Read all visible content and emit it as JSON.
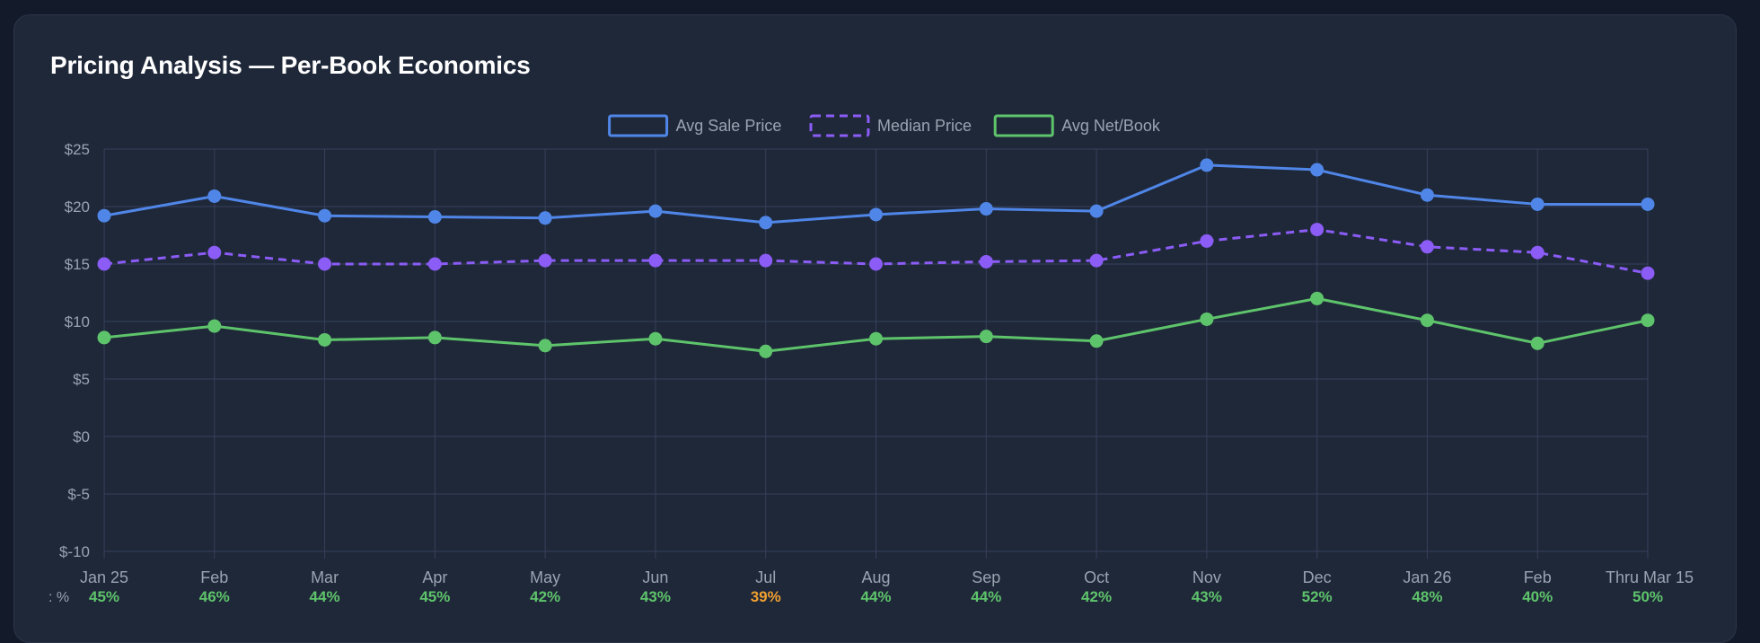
{
  "card": {
    "title": "Pricing Analysis — Per-Book Economics"
  },
  "colors": {
    "background": "#131a2a",
    "card": "#1f2839",
    "grid": "#36405a",
    "tick_text": "#9aa3b2",
    "avg_sale": "#4f86e8",
    "median": "#8b5cf6",
    "avg_net": "#5ec46b",
    "margin_good": "#5ec46b",
    "margin_warn": "#f0a030"
  },
  "chart_data": {
    "type": "line",
    "categories": [
      "Jan 25",
      "Feb",
      "Mar",
      "Apr",
      "May",
      "Jun",
      "Jul",
      "Aug",
      "Sep",
      "Oct",
      "Nov",
      "Dec",
      "Jan 26",
      "Feb",
      "Thru Mar 15"
    ],
    "ylim": [
      -10,
      25
    ],
    "y_ticks": [
      25,
      20,
      15,
      10,
      5,
      0,
      -5,
      -10
    ],
    "y_tick_labels": [
      "$25",
      "$20",
      "$15",
      "$10",
      "$5",
      "$0",
      "$-5",
      "$-10"
    ],
    "grid": true,
    "legend_position": "top-center",
    "series": [
      {
        "name": "Avg Sale Price",
        "style": "solid",
        "color": "#4f86e8",
        "values": [
          19.2,
          20.9,
          19.2,
          19.1,
          19.0,
          19.6,
          18.6,
          19.3,
          19.8,
          19.6,
          23.6,
          23.2,
          21.0,
          20.2,
          20.2
        ]
      },
      {
        "name": "Median Price",
        "style": "dashed",
        "color": "#8b5cf6",
        "values": [
          15.0,
          16.0,
          15.0,
          15.0,
          15.3,
          15.3,
          15.3,
          15.0,
          15.2,
          15.3,
          17.0,
          18.0,
          16.5,
          16.0,
          14.2
        ]
      },
      {
        "name": "Avg Net/Book",
        "style": "solid",
        "color": "#5ec46b",
        "values": [
          8.6,
          9.6,
          8.4,
          8.6,
          7.9,
          8.5,
          7.4,
          8.5,
          8.7,
          8.3,
          10.2,
          12.0,
          10.1,
          8.1,
          10.1
        ]
      }
    ],
    "margin_row": {
      "label": ": %",
      "values": [
        "45%",
        "46%",
        "44%",
        "45%",
        "42%",
        "43%",
        "39%",
        "44%",
        "44%",
        "42%",
        "43%",
        "52%",
        "48%",
        "40%",
        "50%"
      ],
      "warn": [
        false,
        false,
        false,
        false,
        false,
        false,
        true,
        false,
        false,
        false,
        false,
        false,
        false,
        false,
        false
      ]
    }
  }
}
